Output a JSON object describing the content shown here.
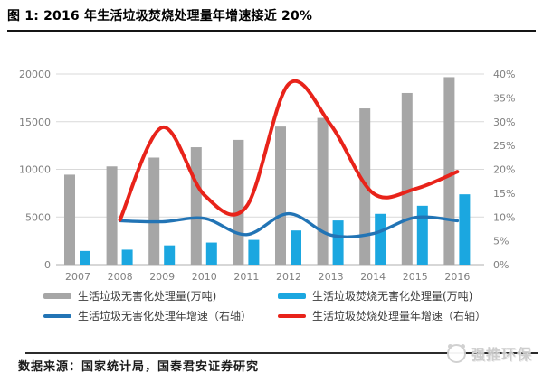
{
  "header": {
    "title": "图 1: 2016 年生活垃圾焚烧处理量年增速接近 20%"
  },
  "chart_data": {
    "type": "combo-bar-line",
    "title": "图 1: 2016 年生活垃圾焚烧处理量年增速接近 20%",
    "categories": [
      "2007",
      "2008",
      "2009",
      "2010",
      "2011",
      "2012",
      "2013",
      "2014",
      "2015",
      "2016"
    ],
    "series": [
      {
        "name": "生活垃圾无害化处理量(万吨)",
        "type": "bar",
        "axis": "left",
        "color": "#a6a6a6",
        "values": [
          9438,
          10307,
          11232,
          12318,
          13090,
          14490,
          15394,
          16394,
          18013,
          19674
        ]
      },
      {
        "name": "生活垃圾焚烧无害化处理量(万吨)",
        "type": "bar",
        "axis": "left",
        "color": "#1ba7e0",
        "values": [
          1435,
          1570,
          2022,
          2317,
          2599,
          3584,
          4634,
          5330,
          6176,
          7378
        ]
      },
      {
        "name": "生活垃圾无害化处理年增速（右轴）",
        "type": "line",
        "axis": "right",
        "color": "#2274b5",
        "values": [
          null,
          9.2,
          9.0,
          9.7,
          6.3,
          10.7,
          6.2,
          6.5,
          9.9,
          9.2
        ]
      },
      {
        "name": "生活垃圾焚烧处理量年增速（右轴）",
        "type": "line",
        "axis": "right",
        "color": "#e8231a",
        "values": [
          null,
          9.4,
          28.8,
          14.6,
          12.2,
          37.9,
          29.3,
          15.0,
          15.9,
          19.5
        ]
      }
    ],
    "left_axis": {
      "min": 0,
      "max": 20000,
      "step": 5000,
      "ticks": [
        "0",
        "5000",
        "10000",
        "15000",
        "20000"
      ]
    },
    "right_axis": {
      "min": 0,
      "max": 40,
      "step": 5,
      "ticks": [
        "0%",
        "5%",
        "10%",
        "15%",
        "20%",
        "25%",
        "30%",
        "35%",
        "40%"
      ]
    },
    "grid": "horizontal-major",
    "legend_position": "bottom",
    "colors": {
      "gridline": "#d9d9d9",
      "axis_line": "#bfbfbf",
      "tick_text": "#7f7f7f"
    }
  },
  "footer": {
    "source": "数据来源：国家统计局，国泰君安证券研究",
    "logo_text": "强推环保"
  }
}
